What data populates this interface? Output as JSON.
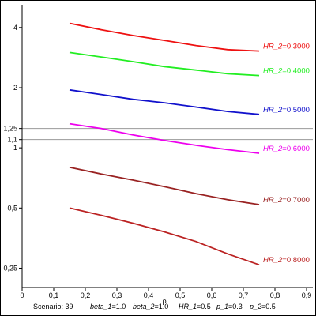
{
  "chart_data": {
    "type": "line",
    "xlabel": "ρ",
    "y_scale": "log",
    "xlim": [
      0,
      0.9
    ],
    "ylim": [
      0.2,
      5.2
    ],
    "x_ticks": [
      "0",
      "0,1",
      "0,2",
      "0,3",
      "0,4",
      "0,5",
      "0,6",
      "0,7",
      "0,8",
      "0,9"
    ],
    "y_ticks": [
      {
        "value": 0.25,
        "label": "0,25"
      },
      {
        "value": 0.5,
        "label": "0,5"
      },
      {
        "value": 1,
        "label": "1"
      },
      {
        "value": 1.1,
        "label": "1,1"
      },
      {
        "value": 1.25,
        "label": "1,25"
      },
      {
        "value": 2,
        "label": "2"
      },
      {
        "value": 4,
        "label": "4"
      }
    ],
    "reference_lines": [
      1.1,
      1.25
    ],
    "grid": false,
    "series": [
      {
        "name": "0.3000",
        "color": "#ee1111",
        "x": [
          0.15,
          0.25,
          0.35,
          0.45,
          0.55,
          0.65,
          0.75
        ],
        "y": [
          4.2,
          3.9,
          3.65,
          3.45,
          3.25,
          3.1,
          3.05
        ]
      },
      {
        "name": "0.4000",
        "color": "#22ee22",
        "x": [
          0.15,
          0.25,
          0.35,
          0.45,
          0.55,
          0.65,
          0.75
        ],
        "y": [
          3.0,
          2.85,
          2.7,
          2.55,
          2.45,
          2.35,
          2.3
        ]
      },
      {
        "name": "0.5000",
        "color": "#1111cc",
        "x": [
          0.15,
          0.25,
          0.35,
          0.45,
          0.55,
          0.65,
          0.75
        ],
        "y": [
          1.95,
          1.85,
          1.75,
          1.68,
          1.6,
          1.52,
          1.47
        ]
      },
      {
        "name": "0.6000",
        "color": "#ee00ee",
        "x": [
          0.15,
          0.25,
          0.35,
          0.45,
          0.55,
          0.65,
          0.75
        ],
        "y": [
          1.32,
          1.25,
          1.16,
          1.09,
          1.03,
          0.98,
          0.94
        ]
      },
      {
        "name": "0.7000",
        "color": "#992222",
        "x": [
          0.15,
          0.25,
          0.35,
          0.45,
          0.55,
          0.65,
          0.75
        ],
        "y": [
          0.8,
          0.74,
          0.69,
          0.64,
          0.59,
          0.55,
          0.52
        ]
      },
      {
        "name": "0.8000",
        "color": "#bb2222",
        "x": [
          0.15,
          0.25,
          0.35,
          0.45,
          0.55,
          0.65,
          0.75
        ],
        "y": [
          0.5,
          0.46,
          0.42,
          0.38,
          0.34,
          0.295,
          0.26
        ]
      }
    ],
    "series_label_prefix": "HR_2",
    "series_label_sep": "="
  },
  "footer": {
    "scenario": "Scenario: 39",
    "beta_1_name": "beta_1",
    "beta_1_val": "=1.0",
    "beta_2_name": "beta_2",
    "beta_2_val": "=1.0",
    "hr_1_name": "HR_1",
    "hr_1_val": "=0.5",
    "p_1_name": "p_1",
    "p_1_val": "=0.3",
    "p_2_name": "p_2",
    "p_2_val": "=0.5"
  }
}
